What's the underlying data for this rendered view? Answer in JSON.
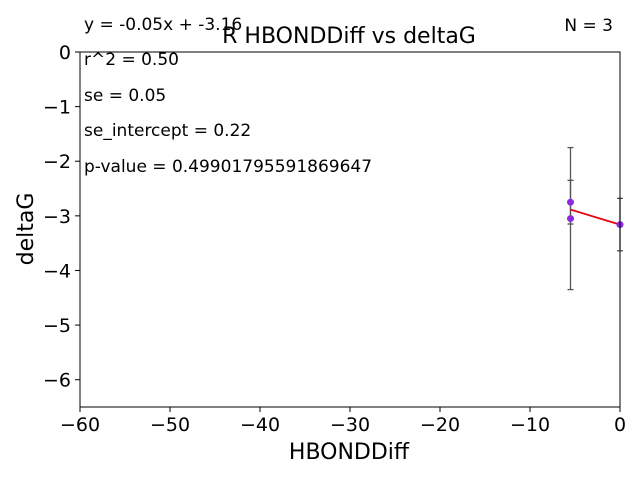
{
  "chart_data": {
    "type": "scatter",
    "title": "R HBONDDiff vs deltaG",
    "xlabel": "HBONDDiff",
    "ylabel": "deltaG",
    "xlim": [
      -60,
      0
    ],
    "ylim": [
      -6.5,
      0
    ],
    "xticks": [
      -60,
      -50,
      -40,
      -30,
      -20,
      -10,
      0
    ],
    "xtick_labels": [
      "−60",
      "−50",
      "−40",
      "−30",
      "−20",
      "−10",
      "0"
    ],
    "yticks": [
      0,
      -1,
      -2,
      -3,
      -4,
      -5,
      -6
    ],
    "ytick_labels": [
      "0",
      "−1",
      "−2",
      "−3",
      "−4",
      "−5",
      "−6"
    ],
    "grid": false,
    "points": [
      {
        "x": -5.5,
        "y": -2.75,
        "yerr": 0.4
      },
      {
        "x": -5.5,
        "y": -3.05,
        "yerr": 1.3
      },
      {
        "x": 0,
        "y": -3.16,
        "yerr": 0.48
      }
    ],
    "point_color": "#8a2be2",
    "errorbar_color": "#555555",
    "fit_line": {
      "x": [
        -5.5,
        0
      ],
      "y": [
        -2.885,
        -3.16
      ],
      "color": "#e8000b"
    },
    "annotations": {
      "equation": "y = -0.05x + -3.16",
      "r2": "r^2 = 0.50",
      "se": "se = 0.05",
      "se_intercept": "se_intercept = 0.22",
      "p_value": "p-value = 0.49901795591869647",
      "n": "N = 3"
    }
  }
}
